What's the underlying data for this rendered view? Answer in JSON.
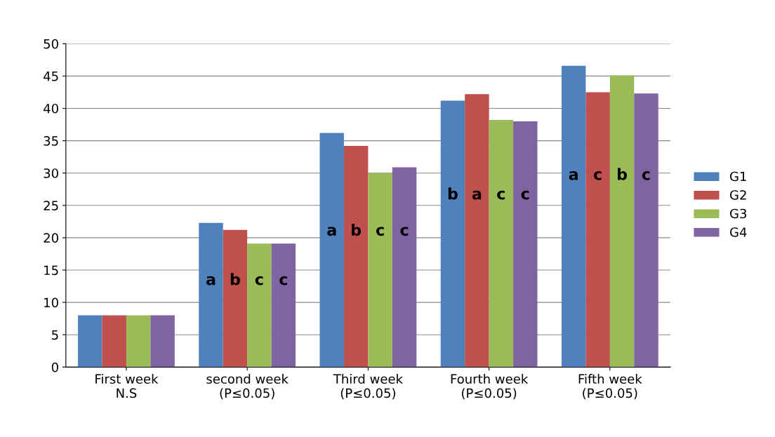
{
  "chart_data": {
    "type": "bar",
    "categories": [
      "First week\nN.S",
      "second week\n(P≤0.05)",
      "Third week\n(P≤0.05)",
      "Fourth week\n(P≤0.05)",
      "Fifth week\n(P≤0.05)"
    ],
    "series": [
      {
        "name": "G1",
        "color": "#4f81bd",
        "values": [
          8,
          22.3,
          36.2,
          41.2,
          46.6
        ]
      },
      {
        "name": "G2",
        "color": "#c0504d",
        "values": [
          8,
          21.2,
          34.2,
          42.2,
          42.5
        ]
      },
      {
        "name": "G3",
        "color": "#9bbb59",
        "values": [
          8,
          19.1,
          30,
          38.2,
          45.1
        ]
      },
      {
        "name": "G4",
        "color": "#8064a2",
        "values": [
          8,
          19.1,
          30.9,
          38,
          42.3
        ]
      }
    ],
    "ylim": [
      0,
      50
    ],
    "yticks": [
      0,
      5,
      10,
      15,
      20,
      25,
      30,
      35,
      40,
      45,
      50
    ],
    "grid": "y",
    "legend": "right",
    "annotations": [
      "a",
      "b",
      "c",
      "c",
      "a",
      "b",
      "c",
      "c",
      "b",
      "a",
      "c",
      "c",
      "a",
      "c",
      "b",
      "c"
    ]
  }
}
